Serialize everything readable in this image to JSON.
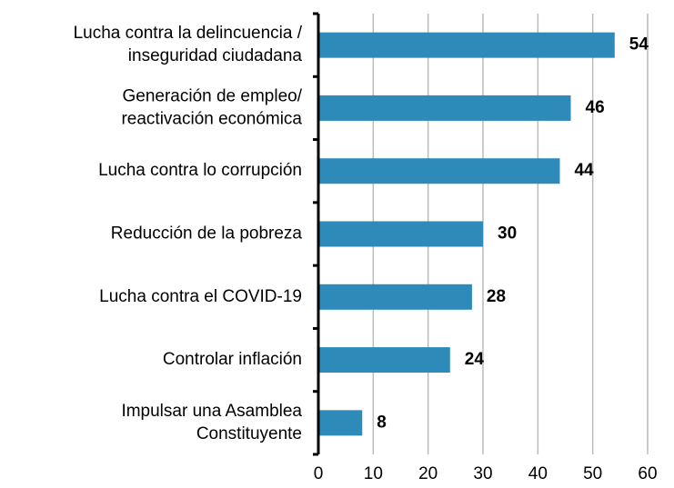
{
  "chart_data": {
    "type": "barh",
    "categories": [
      [
        "Lucha contra la delincuencia /",
        "inseguridad ciudadana"
      ],
      [
        "Generación de empleo/",
        "reactivación económica"
      ],
      [
        "Lucha contra lo corrupción"
      ],
      [
        "Reducción de la pobreza"
      ],
      [
        "Lucha contra el COVID-19"
      ],
      [
        "Controlar inflación"
      ],
      [
        "Impulsar una Asamblea",
        "Constituyente"
      ]
    ],
    "values": [
      54,
      46,
      44,
      30,
      28,
      24,
      8
    ],
    "color": "#2e8ab9",
    "xlim": [
      0,
      60
    ],
    "xticks": [
      0,
      10,
      20,
      30,
      40,
      50,
      60
    ],
    "grid": true
  }
}
